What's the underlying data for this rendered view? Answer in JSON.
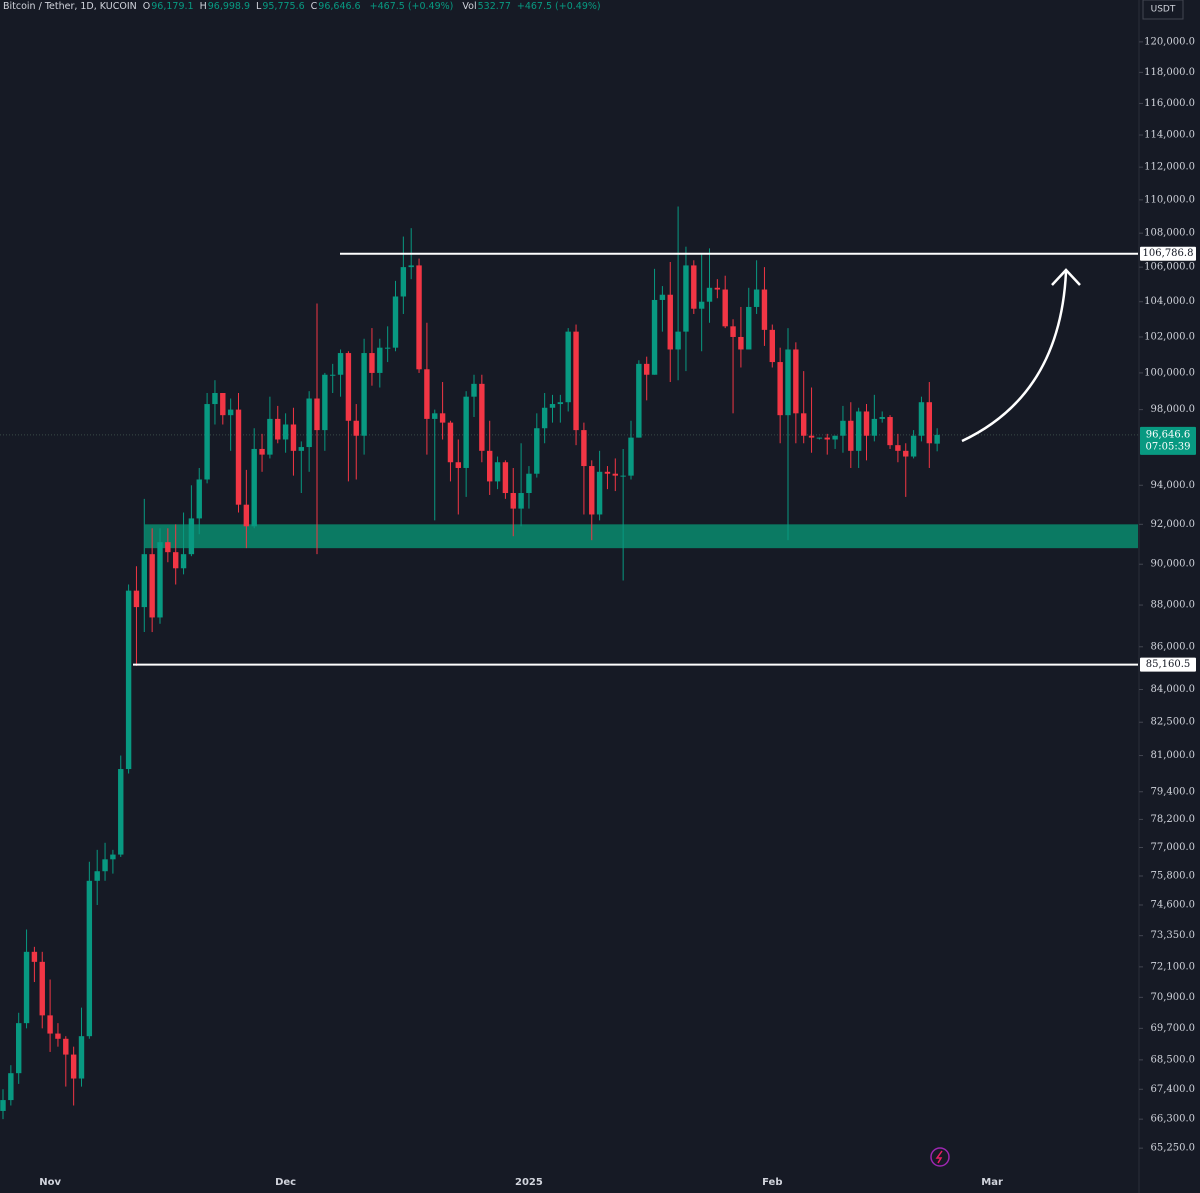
{
  "chart_data": {
    "type": "candlestick",
    "header": {
      "symbol": "Bitcoin / Tether, 1D, KUCOIN",
      "fields": [
        {
          "key": "O",
          "text": "96,179.1"
        },
        {
          "key": "H",
          "text": "96,998.9"
        },
        {
          "key": "L",
          "text": "95,775.6"
        },
        {
          "key": "C",
          "text": "96,646.6"
        }
      ],
      "change": "+467.5 (+0.49%)",
      "volume": {
        "key": "Vol",
        "text": "532.77",
        "change": "+467.5 (+0.49%)"
      }
    },
    "currency": "USDT",
    "log": true,
    "grid": false,
    "colors": {
      "up": "#089981",
      "down": "#f23645"
    },
    "ylim": [
      64540,
      122800
    ],
    "yticks": [
      {
        "value": 120000,
        "label": "120,000.0"
      },
      {
        "value": 118000,
        "label": "118,000.0"
      },
      {
        "value": 116000,
        "label": "116,000.0"
      },
      {
        "value": 114000,
        "label": "114,000.0"
      },
      {
        "value": 112000,
        "label": "112,000.0"
      },
      {
        "value": 110000,
        "label": "110,000.0"
      },
      {
        "value": 108000,
        "label": "108,000.0"
      },
      {
        "value": 106000,
        "label": "106,000.0"
      },
      {
        "value": 104000,
        "label": "104,000.0"
      },
      {
        "value": 102000,
        "label": "102,000.0"
      },
      {
        "value": 100000,
        "label": "100,000.0"
      },
      {
        "value": 98000,
        "label": "98,000.0"
      },
      {
        "value": 94000,
        "label": "94,000.0"
      },
      {
        "value": 92000,
        "label": "92,000.0"
      },
      {
        "value": 90000,
        "label": "90,000.0"
      },
      {
        "value": 88000,
        "label": "88,000.0"
      },
      {
        "value": 86000,
        "label": "86,000.0"
      },
      {
        "value": 84000,
        "label": "84,000.0"
      },
      {
        "value": 82500,
        "label": "82,500.0"
      },
      {
        "value": 81000,
        "label": "81,000.0"
      },
      {
        "value": 79400,
        "label": "79,400.0"
      },
      {
        "value": 78200,
        "label": "78,200.0"
      },
      {
        "value": 77000,
        "label": "77,000.0"
      },
      {
        "value": 75800,
        "label": "75,800.0"
      },
      {
        "value": 74600,
        "label": "74,600.0"
      },
      {
        "value": 73350,
        "label": "73,350.0"
      },
      {
        "value": 72100,
        "label": "72,100.0"
      },
      {
        "value": 70900,
        "label": "70,900.0"
      },
      {
        "value": 69700,
        "label": "69,700.0"
      },
      {
        "value": 68500,
        "label": "68,500.0"
      },
      {
        "value": 67400,
        "label": "67,400.0"
      },
      {
        "value": 66300,
        "label": "66,300.0"
      },
      {
        "value": 65250,
        "label": "65,250.0"
      }
    ],
    "categories": [
      null,
      null,
      null,
      null,
      null,
      null,
      "Nov",
      null,
      null,
      null,
      null,
      null,
      null,
      null,
      null,
      null,
      null,
      null,
      null,
      null,
      null,
      null,
      null,
      null,
      null,
      null,
      null,
      null,
      null,
      null,
      null,
      null,
      null,
      null,
      null,
      null,
      "Dec",
      null,
      null,
      null,
      null,
      null,
      null,
      null,
      null,
      null,
      null,
      null,
      null,
      null,
      null,
      null,
      null,
      null,
      null,
      null,
      null,
      null,
      null,
      null,
      null,
      null,
      null,
      null,
      null,
      null,
      null,
      "2025",
      null,
      null,
      null,
      null,
      null,
      null,
      null,
      null,
      null,
      null,
      null,
      null,
      null,
      null,
      null,
      null,
      null,
      null,
      null,
      null,
      null,
      null,
      null,
      null,
      null,
      null,
      null,
      null,
      null,
      null,
      "Feb",
      null,
      null,
      null,
      null,
      null,
      null,
      null,
      null,
      null,
      null,
      null,
      null,
      null,
      null,
      null,
      null,
      null,
      null,
      null,
      null,
      null,
      null,
      null,
      null,
      null,
      null,
      null,
      "Mar"
    ],
    "open": [
      66600,
      67000,
      68000,
      69900,
      72700,
      72300,
      70200,
      69500,
      69300,
      68700,
      67800,
      69400,
      75600,
      76000,
      76500,
      76700,
      80400,
      88700,
      87900,
      90500,
      87400,
      91100,
      90600,
      89800,
      90500,
      92300,
      94300,
      98300,
      98900,
      97700,
      98000,
      93000,
      91900,
      95900,
      95600,
      97500,
      96400,
      97200,
      95800,
      96000,
      98600,
      96900,
      99900,
      99900,
      101100,
      97400,
      96600,
      101100,
      100000,
      101400,
      101400,
      104300,
      106000,
      106100,
      100200,
      97500,
      97800,
      97300,
      95200,
      94900,
      98700,
      99400,
      95800,
      94200,
      95200,
      93600,
      92800,
      93600,
      94600,
      97000,
      98100,
      98300,
      98400,
      102300,
      96900,
      95000,
      92500,
      94700,
      94600,
      94500,
      94500,
      96500,
      100500,
      99900,
      104100,
      104400,
      101300,
      102300,
      106100,
      103600,
      104000,
      104800,
      104700,
      102600,
      102000,
      101300,
      103700,
      104700,
      102400,
      100600,
      97700,
      101300,
      97800,
      96600,
      96500,
      96500,
      96400,
      96600,
      97400,
      95800,
      97900,
      96600,
      97500,
      97600,
      96100,
      95800,
      95500,
      96600,
      98400,
      96179.1,
      null,
      null,
      null,
      null,
      null,
      null,
      null
    ],
    "high": [
      67400,
      68300,
      70300,
      73600,
      72900,
      72700,
      71600,
      69900,
      69400,
      69000,
      70500,
      76400,
      76900,
      77200,
      76900,
      81000,
      89000,
      89900,
      93300,
      91800,
      91800,
      91800,
      92000,
      92600,
      94000,
      94900,
      98900,
      99600,
      98900,
      98600,
      98900,
      94800,
      97000,
      96700,
      98700,
      98200,
      97800,
      98100,
      96300,
      99000,
      103900,
      100000,
      100500,
      101300,
      101200,
      98300,
      101900,
      102500,
      101900,
      102600,
      105200,
      107800,
      108300,
      106500,
      102800,
      98000,
      99500,
      97400,
      96400,
      99000,
      99900,
      99900,
      97400,
      95500,
      95300,
      94900,
      96200,
      95000,
      97800,
      98900,
      98800,
      98800,
      102500,
      102700,
      97300,
      95300,
      95800,
      95000,
      95400,
      95900,
      97400,
      100700,
      100900,
      105900,
      104900,
      106300,
      109600,
      107200,
      106400,
      106800,
      107100,
      105300,
      105500,
      103000,
      103700,
      104800,
      106400,
      106000,
      102700,
      101400,
      102500,
      101700,
      100100,
      99200,
      96500,
      96700,
      96600,
      98200,
      98400,
      98100,
      98300,
      98800,
      97900,
      97700,
      96700,
      96200,
      96900,
      98700,
      99500,
      96998.9,
      null,
      null,
      null,
      null,
      null,
      null,
      null
    ],
    "low": [
      66300,
      66800,
      67600,
      69700,
      71500,
      69700,
      68800,
      69000,
      67500,
      66800,
      67500,
      69300,
      74600,
      75600,
      75900,
      76600,
      80200,
      85100,
      86700,
      86700,
      87100,
      90100,
      89000,
      89500,
      90400,
      91500,
      94100,
      97200,
      97200,
      95800,
      92600,
      90800,
      91800,
      94700,
      95400,
      96200,
      95700,
      94500,
      93600,
      94700,
      90500,
      95800,
      98900,
      98700,
      94200,
      94300,
      95600,
      99300,
      99200,
      100600,
      101200,
      103300,
      105300,
      100000,
      95600,
      92200,
      96400,
      94200,
      92500,
      93400,
      97600,
      95200,
      93500,
      93800,
      93300,
      91400,
      91900,
      92800,
      94400,
      96200,
      97300,
      97300,
      97900,
      96100,
      92500,
      91200,
      92200,
      93800,
      93700,
      89200,
      94300,
      96500,
      98500,
      99900,
      102300,
      99500,
      99600,
      100100,
      103300,
      101200,
      102800,
      104200,
      102500,
      97800,
      100300,
      101300,
      103300,
      101500,
      100300,
      96200,
      91200,
      96200,
      96200,
      95700,
      96400,
      95600,
      95900,
      95700,
      94900,
      94900,
      95300,
      96300,
      97300,
      95900,
      95200,
      93400,
      95400,
      96300,
      94900,
      95775.6,
      null,
      null,
      null,
      null,
      null,
      null,
      null
    ],
    "close": [
      67000,
      68000,
      69900,
      72700,
      72300,
      70200,
      69500,
      69300,
      68700,
      67800,
      69400,
      75600,
      76000,
      76500,
      76700,
      80400,
      88700,
      87900,
      90500,
      87400,
      91100,
      90600,
      89800,
      90500,
      92300,
      94300,
      98300,
      98900,
      97700,
      98000,
      93000,
      91900,
      95900,
      95600,
      97500,
      96400,
      97200,
      95800,
      96000,
      98600,
      96900,
      99900,
      99900,
      101100,
      97400,
      96600,
      101100,
      100000,
      101400,
      101400,
      104300,
      106000,
      106100,
      100200,
      97500,
      97800,
      97300,
      95200,
      94900,
      98700,
      99400,
      95800,
      94200,
      95200,
      93600,
      92800,
      93600,
      94600,
      97000,
      98100,
      98300,
      98400,
      102300,
      96900,
      95000,
      92500,
      94700,
      94600,
      94500,
      94500,
      96500,
      100500,
      99900,
      104100,
      104400,
      101300,
      102300,
      106100,
      103600,
      104000,
      104800,
      104700,
      102600,
      102000,
      101300,
      103700,
      104700,
      102400,
      100600,
      97700,
      101300,
      97800,
      96600,
      96500,
      96500,
      96400,
      96600,
      97400,
      95800,
      97900,
      96600,
      97500,
      97600,
      96100,
      95800,
      95500,
      96600,
      98400,
      96200,
      96646.6,
      null,
      null,
      null,
      null,
      null,
      null,
      null
    ],
    "levels": [
      {
        "value": 106786.8,
        "label": "106,786.8"
      },
      {
        "value": 85160.5,
        "label": "85,160.5"
      }
    ],
    "zone": {
      "range": [
        90800,
        92000
      ],
      "color": "#0b7a63"
    },
    "last_price": {
      "value": 96646.6,
      "label": "96,646.6"
    },
    "countdown": "07:05:39"
  }
}
